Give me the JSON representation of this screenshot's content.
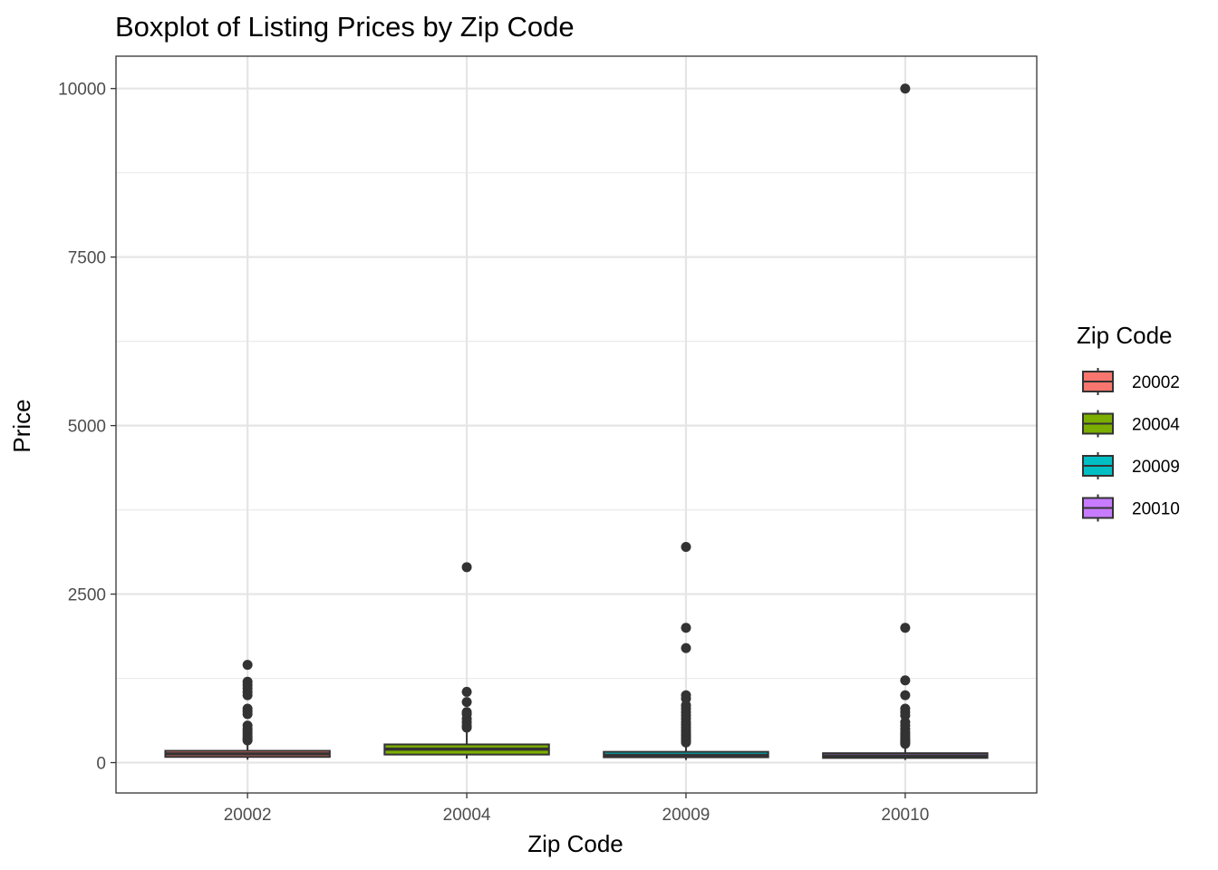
{
  "chart_data": {
    "type": "boxplot",
    "title": "Boxplot of Listing Prices by Zip Code",
    "xlabel": "Zip Code",
    "ylabel": "Price",
    "ylim": [
      -450,
      10480
    ],
    "yticks": [
      0,
      2500,
      5000,
      7500,
      10000
    ],
    "grid": true,
    "legend_title": "Zip Code",
    "legend_position": "right",
    "categories": [
      "20002",
      "20004",
      "20009",
      "20010"
    ],
    "colors": [
      "#F8766D",
      "#7CAE00",
      "#00BFC4",
      "#C77CFF"
    ],
    "boxes": [
      {
        "category": "20002",
        "min": 45,
        "q1": 85,
        "median": 130,
        "q3": 175,
        "max": 310,
        "outliers": [
          1450,
          1200,
          1150,
          1100,
          1050,
          1000,
          800,
          760,
          720,
          550,
          500,
          460,
          420,
          380,
          350,
          330
        ]
      },
      {
        "category": "20004",
        "min": 60,
        "q1": 120,
        "median": 200,
        "q3": 270,
        "max": 480,
        "outliers": [
          2900,
          1050,
          900,
          750,
          720,
          650,
          600,
          550,
          520
        ]
      },
      {
        "category": "20009",
        "min": 40,
        "q1": 80,
        "median": 110,
        "q3": 160,
        "max": 290,
        "outliers": [
          3200,
          2000,
          1700,
          1000,
          950,
          850,
          800,
          750,
          700,
          650,
          600,
          560,
          520,
          480,
          450,
          420,
          400,
          380,
          360,
          340,
          320,
          300
        ]
      },
      {
        "category": "20010",
        "min": 40,
        "q1": 70,
        "median": 100,
        "q3": 140,
        "max": 260,
        "outliers": [
          10000,
          2000,
          1220,
          1000,
          800,
          750,
          700,
          600,
          550,
          500,
          450,
          420,
          390,
          360,
          340,
          320,
          300,
          280
        ]
      }
    ]
  }
}
